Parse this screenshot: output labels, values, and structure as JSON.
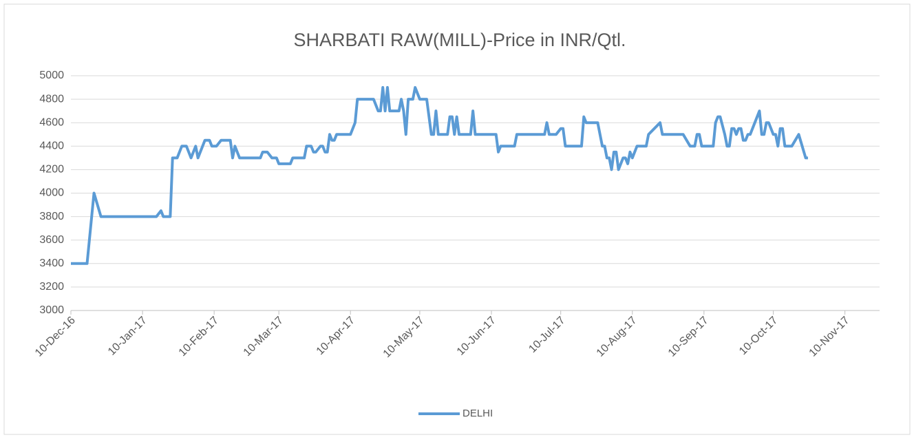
{
  "chart_data": {
    "type": "line",
    "title": "SHARBATI RAW(MILL)-Price in INR/Qtl.",
    "x": [
      "2016-12-10",
      "2016-12-17",
      "2016-12-19",
      "2016-12-20",
      "2016-12-23",
      "2017-01-16",
      "2017-01-18",
      "2017-01-19",
      "2017-01-22",
      "2017-01-23",
      "2017-01-25",
      "2017-01-27",
      "2017-01-29",
      "2017-01-31",
      "2017-02-02",
      "2017-02-03",
      "2017-02-06",
      "2017-02-08",
      "2017-02-09",
      "2017-02-11",
      "2017-02-13",
      "2017-02-17",
      "2017-02-18",
      "2017-02-19",
      "2017-02-21",
      "2017-03-02",
      "2017-03-03",
      "2017-03-05",
      "2017-03-07",
      "2017-03-09",
      "2017-03-10",
      "2017-03-15",
      "2017-03-16",
      "2017-03-21",
      "2017-03-22",
      "2017-03-24",
      "2017-03-25",
      "2017-03-26",
      "2017-03-28",
      "2017-03-29",
      "2017-03-30",
      "2017-03-31",
      "2017-04-01",
      "2017-04-02",
      "2017-04-03",
      "2017-04-04",
      "2017-04-10",
      "2017-04-12",
      "2017-04-13",
      "2017-04-20",
      "2017-04-22",
      "2017-04-23",
      "2017-04-24",
      "2017-04-25",
      "2017-04-26",
      "2017-04-27",
      "2017-05-01",
      "2017-05-02",
      "2017-05-03",
      "2017-05-04",
      "2017-05-05",
      "2017-05-07",
      "2017-05-08",
      "2017-05-10",
      "2017-05-13",
      "2017-05-15",
      "2017-05-16",
      "2017-05-17",
      "2017-05-18",
      "2017-05-22",
      "2017-05-23",
      "2017-05-24",
      "2017-05-25",
      "2017-05-26",
      "2017-05-27",
      "2017-06-01",
      "2017-06-02",
      "2017-06-03",
      "2017-06-12",
      "2017-06-13",
      "2017-06-14",
      "2017-06-20",
      "2017-06-21",
      "2017-07-03",
      "2017-07-04",
      "2017-07-05",
      "2017-07-08",
      "2017-07-10",
      "2017-07-11",
      "2017-07-12",
      "2017-07-19",
      "2017-07-20",
      "2017-07-21",
      "2017-07-26",
      "2017-07-28",
      "2017-07-29",
      "2017-07-30",
      "2017-07-31",
      "2017-08-01",
      "2017-08-02",
      "2017-08-03",
      "2017-08-04",
      "2017-08-06",
      "2017-08-07",
      "2017-08-08",
      "2017-08-09",
      "2017-08-10",
      "2017-08-12",
      "2017-08-16",
      "2017-08-17",
      "2017-08-22",
      "2017-08-23",
      "2017-09-01",
      "2017-09-04",
      "2017-09-06",
      "2017-09-07",
      "2017-09-08",
      "2017-09-09",
      "2017-09-14",
      "2017-09-15",
      "2017-09-16",
      "2017-09-17",
      "2017-09-19",
      "2017-09-20",
      "2017-09-21",
      "2017-09-22",
      "2017-09-23",
      "2017-09-24",
      "2017-09-25",
      "2017-09-26",
      "2017-09-27",
      "2017-09-28",
      "2017-09-29",
      "2017-09-30",
      "2017-10-04",
      "2017-10-05",
      "2017-10-06",
      "2017-10-07",
      "2017-10-08",
      "2017-10-10",
      "2017-10-11",
      "2017-10-12",
      "2017-10-13",
      "2017-10-14",
      "2017-10-15",
      "2017-10-18",
      "2017-10-21",
      "2017-10-24",
      "2017-10-25"
    ],
    "series": [
      {
        "name": "DELHI",
        "color": "#5b9bd5",
        "values": [
          3400,
          3400,
          3800,
          4000,
          3800,
          3800,
          3850,
          3800,
          3800,
          4300,
          4300,
          4400,
          4400,
          4300,
          4400,
          4300,
          4450,
          4450,
          4400,
          4400,
          4450,
          4450,
          4300,
          4400,
          4300,
          4300,
          4350,
          4350,
          4300,
          4300,
          4250,
          4250,
          4300,
          4300,
          4400,
          4400,
          4350,
          4350,
          4400,
          4400,
          4350,
          4350,
          4500,
          4450,
          4450,
          4500,
          4500,
          4600,
          4800,
          4800,
          4700,
          4700,
          4900,
          4700,
          4900,
          4700,
          4700,
          4800,
          4700,
          4500,
          4800,
          4800,
          4900,
          4800,
          4800,
          4500,
          4500,
          4700,
          4500,
          4500,
          4650,
          4650,
          4500,
          4650,
          4500,
          4500,
          4700,
          4500,
          4500,
          4350,
          4400,
          4400,
          4500,
          4500,
          4600,
          4500,
          4500,
          4550,
          4550,
          4400,
          4400,
          4650,
          4600,
          4600,
          4400,
          4400,
          4300,
          4300,
          4200,
          4350,
          4350,
          4200,
          4300,
          4300,
          4250,
          4350,
          4300,
          4400,
          4400,
          4500,
          4600,
          4500,
          4500,
          4400,
          4400,
          4500,
          4500,
          4400,
          4400,
          4600,
          4650,
          4650,
          4500,
          4400,
          4400,
          4550,
          4550,
          4500,
          4550,
          4550,
          4450,
          4450,
          4500,
          4500,
          4700,
          4500,
          4500,
          4600,
          4600,
          4500,
          4500,
          4400,
          4550,
          4550,
          4400,
          4400,
          4500,
          4300,
          4300
        ]
      }
    ],
    "xlim": [
      "2016-12-10",
      "2017-11-25"
    ],
    "xticks": [
      {
        "value": "2016-12-10",
        "label": "10-Dec-16"
      },
      {
        "value": "2017-01-10",
        "label": "10-Jan-17"
      },
      {
        "value": "2017-02-10",
        "label": "10-Feb-17"
      },
      {
        "value": "2017-03-10",
        "label": "10-Mar-17"
      },
      {
        "value": "2017-04-10",
        "label": "10-Apr-17"
      },
      {
        "value": "2017-05-10",
        "label": "10-May-17"
      },
      {
        "value": "2017-06-10",
        "label": "10-Jun-17"
      },
      {
        "value": "2017-07-10",
        "label": "10-Jul-17"
      },
      {
        "value": "2017-08-10",
        "label": "10-Aug-17"
      },
      {
        "value": "2017-09-10",
        "label": "10-Sep-17"
      },
      {
        "value": "2017-10-10",
        "label": "10-Oct-17"
      },
      {
        "value": "2017-11-10",
        "label": "10-Nov-17"
      }
    ],
    "ylim": [
      3000,
      5000
    ],
    "yticks": [
      3000,
      3200,
      3400,
      3600,
      3800,
      4000,
      4200,
      4400,
      4600,
      4800,
      5000
    ],
    "grid": true,
    "legend": "bottom"
  }
}
